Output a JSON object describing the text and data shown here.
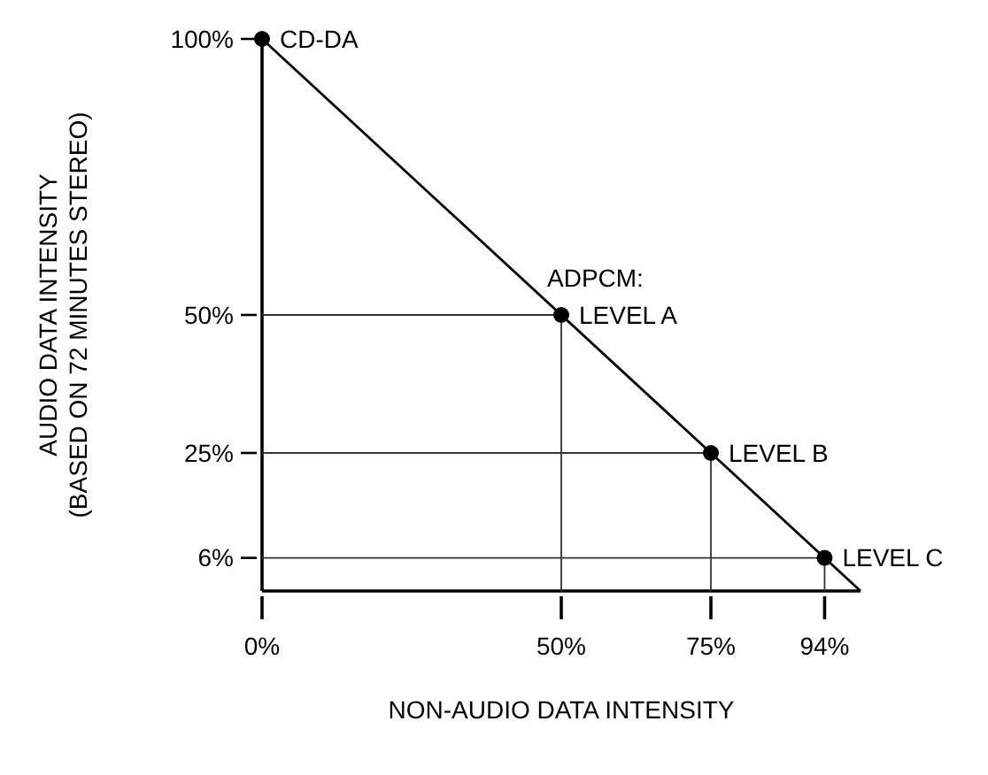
{
  "chart_data": {
    "type": "line",
    "xlabel": "NON-AUDIO DATA INTENSITY",
    "ylabel": "AUDIO DATA INTENSITY\n(BASED ON 72 MINUTES STEREO)",
    "xlim": [
      0,
      100
    ],
    "ylim": [
      0,
      100
    ],
    "xticks": [
      {
        "value": 0,
        "label": "0%"
      },
      {
        "value": 50,
        "label": "50%"
      },
      {
        "value": 75,
        "label": "75%"
      },
      {
        "value": 94,
        "label": "94%"
      }
    ],
    "yticks": [
      {
        "value": 6,
        "label": "6%"
      },
      {
        "value": 25,
        "label": "25%"
      },
      {
        "value": 50,
        "label": "50%"
      },
      {
        "value": 100,
        "label": "100%"
      }
    ],
    "grid": false,
    "series": [
      {
        "color": "#000000",
        "x": [
          0,
          100
        ],
        "values": [
          100,
          0
        ]
      },
      {
        "color": "#333333",
        "x": [
          0,
          50,
          50
        ],
        "values": [
          50,
          50,
          0
        ]
      },
      {
        "color": "#333333",
        "x": [
          0,
          75,
          75
        ],
        "values": [
          25,
          25,
          0
        ]
      },
      {
        "color": "#333333",
        "x": [
          0,
          94,
          94
        ],
        "values": [
          6,
          6,
          0
        ]
      },
      {
        "type": "scatter",
        "color": "#000000",
        "marker": "circle",
        "x": [
          0,
          50,
          75,
          94
        ],
        "values": [
          100,
          50,
          25,
          6
        ]
      }
    ],
    "annotations": [
      {
        "text": "CD-DA",
        "x": 0,
        "y": 100
      },
      {
        "text": "ADPCM:",
        "x": 50,
        "y": 50
      },
      {
        "text": "LEVEL A",
        "x": 50,
        "y": 50
      },
      {
        "text": "LEVEL B",
        "x": 75,
        "y": 25
      },
      {
        "text": "LEVEL C",
        "x": 94,
        "y": 6
      }
    ]
  }
}
